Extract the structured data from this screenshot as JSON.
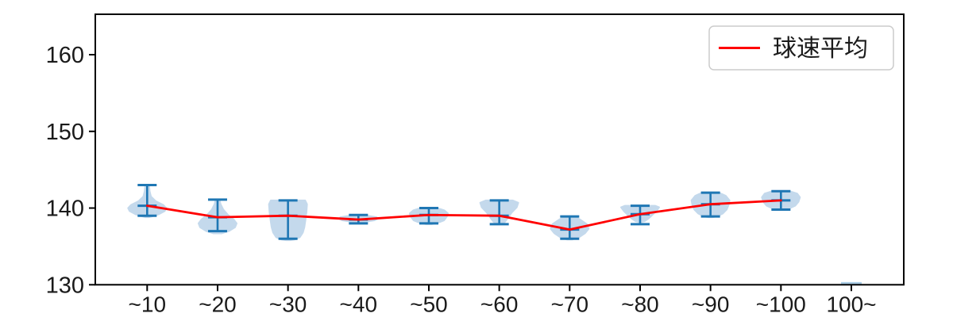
{
  "chart_data": {
    "type": "violin",
    "title": "",
    "xlabel": "",
    "ylabel": "",
    "categories": [
      "~10",
      "~20",
      "~30",
      "~40",
      "~50",
      "~60",
      "~70",
      "~80",
      "~90",
      "~100",
      "100~"
    ],
    "yticks": [
      130,
      140,
      150,
      160
    ],
    "ylim": [
      130,
      165.3
    ],
    "grid": false,
    "legend": {
      "position": "upper right",
      "entries": [
        {
          "label": "球速平均",
          "type": "line",
          "color": "#ff0000"
        }
      ]
    },
    "series": [
      {
        "name": "球速平均",
        "type": "line",
        "color": "#ff0000",
        "values": [
          140.3,
          138.8,
          139.0,
          138.5,
          139.1,
          139.0,
          137.2,
          139.2,
          140.5,
          141.0,
          null
        ]
      }
    ],
    "violins": [
      {
        "category": "~10",
        "min": 139.0,
        "max": 143.0,
        "mean": 140.3,
        "shape": [
          [
            143.0,
            0.1
          ],
          [
            142.2,
            0.13
          ],
          [
            141.5,
            0.2
          ],
          [
            140.9,
            0.45
          ],
          [
            140.4,
            0.85
          ],
          [
            140.0,
            1.0
          ],
          [
            139.6,
            0.92
          ],
          [
            139.2,
            0.62
          ],
          [
            138.9,
            0.25
          ],
          [
            138.8,
            0.08
          ]
        ]
      },
      {
        "category": "~20",
        "min": 137.0,
        "max": 141.1,
        "mean": 138.8,
        "shape": [
          [
            141.1,
            0.1
          ],
          [
            140.5,
            0.16
          ],
          [
            139.8,
            0.3
          ],
          [
            139.1,
            0.55
          ],
          [
            138.5,
            0.85
          ],
          [
            138.0,
            1.0
          ],
          [
            137.5,
            0.92
          ],
          [
            137.0,
            0.6
          ],
          [
            136.7,
            0.22
          ]
        ]
      },
      {
        "category": "~30",
        "min": 136.0,
        "max": 141.0,
        "mean": 139.0,
        "shape": [
          [
            141.0,
            0.9
          ],
          [
            140.5,
            1.0
          ],
          [
            139.5,
            0.97
          ],
          [
            138.5,
            0.92
          ],
          [
            137.5,
            0.86
          ],
          [
            136.8,
            0.78
          ],
          [
            136.2,
            0.62
          ],
          [
            135.9,
            0.35
          ],
          [
            135.8,
            0.1
          ]
        ]
      },
      {
        "category": "~40",
        "min": 138.0,
        "max": 139.1,
        "mean": 138.5,
        "shape": [
          [
            139.1,
            0.18
          ],
          [
            138.95,
            0.62
          ],
          [
            138.8,
            0.95
          ],
          [
            138.6,
            1.0
          ],
          [
            138.4,
            0.85
          ],
          [
            138.25,
            0.45
          ],
          [
            138.15,
            0.12
          ]
        ]
      },
      {
        "category": "~50",
        "min": 138.0,
        "max": 140.0,
        "mean": 139.1,
        "shape": [
          [
            140.0,
            0.45
          ],
          [
            139.7,
            0.82
          ],
          [
            139.3,
            1.0
          ],
          [
            138.9,
            0.95
          ],
          [
            138.4,
            0.8
          ],
          [
            138.1,
            0.5
          ],
          [
            137.9,
            0.15
          ]
        ]
      },
      {
        "category": "~60",
        "min": 137.9,
        "max": 141.0,
        "mean": 139.0,
        "shape": [
          [
            141.0,
            0.7
          ],
          [
            140.7,
            1.0
          ],
          [
            140.1,
            0.92
          ],
          [
            139.4,
            0.65
          ],
          [
            138.7,
            0.45
          ],
          [
            138.2,
            0.3
          ],
          [
            137.9,
            0.12
          ]
        ]
      },
      {
        "category": "~70",
        "min": 136.0,
        "max": 138.9,
        "mean": 137.2,
        "shape": [
          [
            138.9,
            0.25
          ],
          [
            138.5,
            0.55
          ],
          [
            137.9,
            0.9
          ],
          [
            137.3,
            1.0
          ],
          [
            136.7,
            0.8
          ],
          [
            136.2,
            0.5
          ],
          [
            135.9,
            0.15
          ]
        ]
      },
      {
        "category": "~80",
        "min": 137.9,
        "max": 140.3,
        "mean": 139.2,
        "shape": [
          [
            140.3,
            0.8
          ],
          [
            140.1,
            1.0
          ],
          [
            139.6,
            0.85
          ],
          [
            139.0,
            0.6
          ],
          [
            138.6,
            0.42
          ],
          [
            138.3,
            0.25
          ],
          [
            138.2,
            0.08
          ]
        ]
      },
      {
        "category": "~90",
        "min": 138.9,
        "max": 142.0,
        "mean": 140.5,
        "shape": [
          [
            142.0,
            0.45
          ],
          [
            141.6,
            0.8
          ],
          [
            141.0,
            1.0
          ],
          [
            140.4,
            0.95
          ],
          [
            139.8,
            0.85
          ],
          [
            139.3,
            0.65
          ],
          [
            138.9,
            0.35
          ],
          [
            138.8,
            0.1
          ]
        ]
      },
      {
        "category": "~100",
        "min": 139.8,
        "max": 142.2,
        "mean": 141.0,
        "shape": [
          [
            142.2,
            0.45
          ],
          [
            141.9,
            0.85
          ],
          [
            141.4,
            1.0
          ],
          [
            140.8,
            0.92
          ],
          [
            140.3,
            0.75
          ],
          [
            139.9,
            0.4
          ],
          [
            139.8,
            0.12
          ]
        ]
      },
      {
        "category": "100~",
        "single_value": 130.2
      }
    ],
    "colors": {
      "violin_fill": "#c4d9ec",
      "violin_edge": "#1f77b4",
      "mean_line": "#ff0000",
      "axis": "#000000",
      "single_value_mark": "#aacde6"
    }
  }
}
